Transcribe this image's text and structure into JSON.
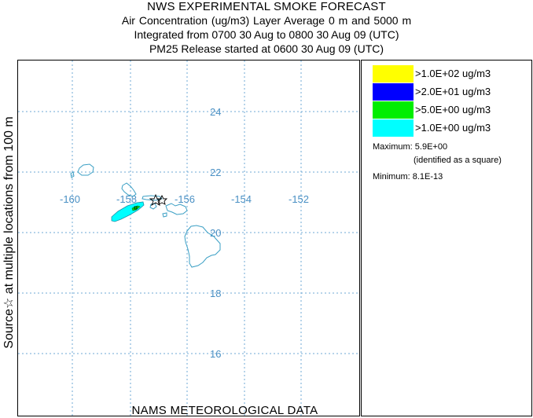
{
  "header": {
    "title": "NWS EXPERIMENTAL SMOKE FORECAST",
    "line2": "Air Concentration (ug/m3) Layer Average    0 m and  5000 m",
    "line3": "Integrated from 0700 30 Aug to 0800 30 Aug 09 (UTC)",
    "line4": "PM25 Release started at 0600 30 Aug 09 (UTC)"
  },
  "footer": {
    "data_source": "NAMS METEOROLOGICAL DATA"
  },
  "side_label": {
    "source_symbol": "☆",
    "text": "Source☆  at multiple locations     from   100 m"
  },
  "map": {
    "latitude_ticks": [
      "24",
      "22",
      "20",
      "18",
      "16"
    ],
    "longitude_ticks": [
      "-160",
      "-158",
      "-156",
      "-154",
      "-152"
    ],
    "grid_color": "#6fa8d6",
    "coast_color": "#3a9fc4",
    "source_marker": "☆"
  },
  "legend": {
    "items": [
      {
        "label": ">1.0E+02 ug/m3",
        "color": "#ffff00"
      },
      {
        "label": ">2.0E+01 ug/m3",
        "color": "#0000ff"
      },
      {
        "label": ">5.0E+00 ug/m3",
        "color": "#00ee00"
      },
      {
        "label": ">1.0E+00 ug/m3",
        "color": "#00ffff"
      }
    ],
    "maximum": "Maximum: 5.9E+00",
    "maximum_note": "(identified as a square)",
    "minimum": "Minimum: 8.1E-13"
  }
}
